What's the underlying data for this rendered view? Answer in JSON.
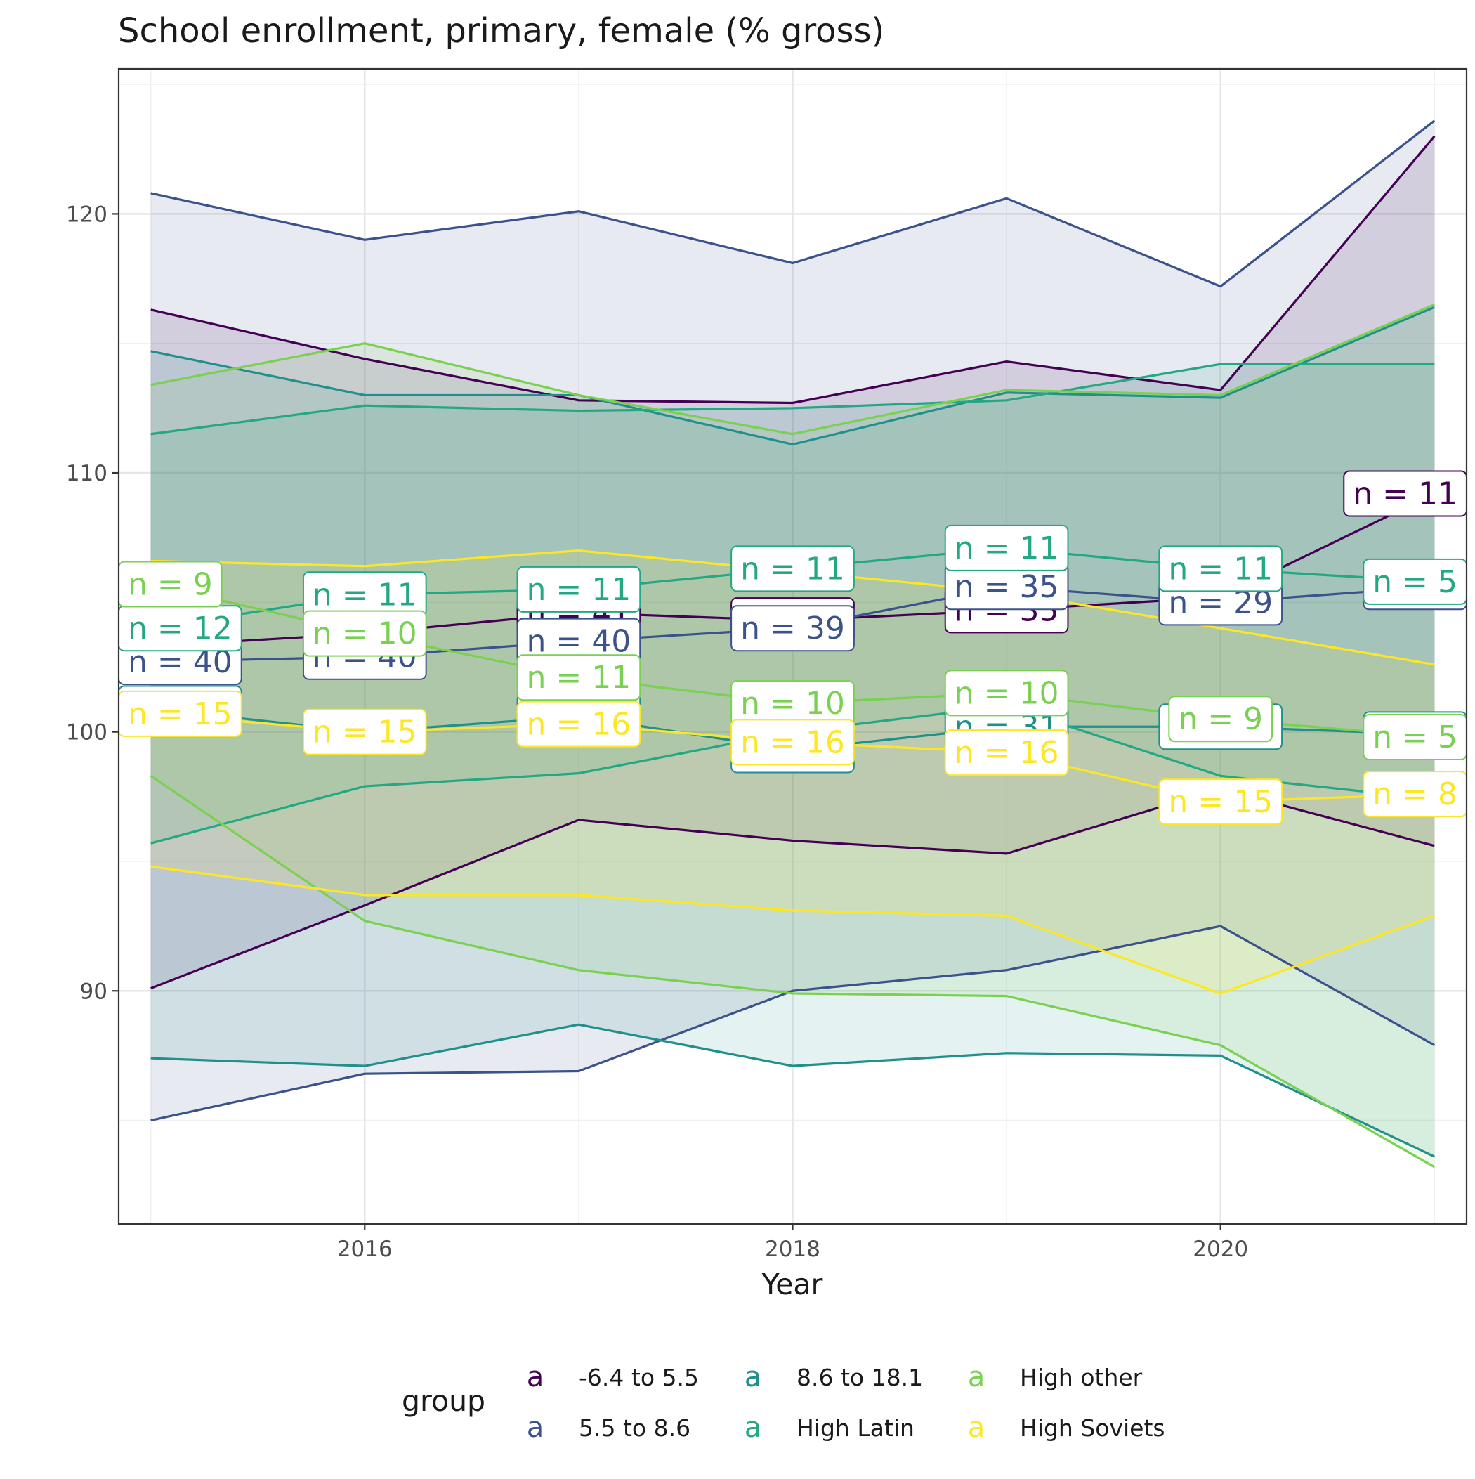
{
  "chart_data": {
    "type": "line",
    "title": "School enrollment, primary, female (% gross)",
    "xlabel": "Year",
    "ylabel": "",
    "xlim": [
      2014.85,
      2021.15
    ],
    "ylim": [
      81.0,
      125.6
    ],
    "x_ticks": [
      2016,
      2018,
      2020
    ],
    "y_ticks": [
      90,
      100,
      110,
      120
    ],
    "grid": true,
    "legend": {
      "title": "group",
      "position": "bottom",
      "key_glyph": "a",
      "entries": [
        "-6.4 to 5.5",
        "5.5 to 8.6",
        "8.6 to 18.1",
        "High Latin",
        "High other",
        "High Soviets"
      ]
    },
    "x": [
      2015,
      2016,
      2017,
      2018,
      2019,
      2020,
      2021
    ],
    "series": [
      {
        "name": "-6.4 to 5.5",
        "color": "#440154",
        "upper": [
          116.3,
          114.4,
          112.8,
          112.7,
          114.3,
          113.2,
          123.0
        ],
        "mean": [
          103.3,
          103.8,
          104.6,
          104.3,
          104.7,
          105.2,
          109.2
        ],
        "lower": [
          90.1,
          93.3,
          96.6,
          95.8,
          95.3,
          97.8,
          95.6
        ],
        "n_labels": [
          {
            "x": 2021,
            "y": 109.2,
            "text": "n = 11"
          },
          {
            "x": 2019,
            "y": 104.7,
            "text": "n = 35"
          },
          {
            "x": 2017,
            "y": 104.6,
            "text": "n = 41"
          },
          {
            "x": 2018,
            "y": 104.3,
            "text": "n = 39"
          }
        ]
      },
      {
        "name": "5.5 to 8.6",
        "color": "#3b528b",
        "upper": [
          120.8,
          119.0,
          120.1,
          118.1,
          120.6,
          117.2,
          123.6
        ],
        "mean": [
          102.7,
          102.9,
          103.5,
          104.0,
          105.6,
          105.0,
          105.6
        ],
        "lower": [
          85.0,
          86.8,
          86.9,
          90.0,
          90.8,
          92.5,
          87.9
        ],
        "n_labels": [
          {
            "x": 2015,
            "y": 102.7,
            "text": "n = 40"
          },
          {
            "x": 2016,
            "y": 102.9,
            "text": "n = 40"
          },
          {
            "x": 2017,
            "y": 103.5,
            "text": "n = 40"
          },
          {
            "x": 2018,
            "y": 104.0,
            "text": "n = 39"
          },
          {
            "x": 2019,
            "y": 105.6,
            "text": "n = 35"
          },
          {
            "x": 2020,
            "y": 105.0,
            "text": "n = 29"
          },
          {
            "x": 2021,
            "y": 105.6,
            "text": "n = 5"
          }
        ]
      },
      {
        "name": "8.6 to 18.1",
        "color": "#21908c",
        "upper": [
          114.7,
          113.0,
          113.0,
          111.1,
          113.1,
          112.9,
          116.4
        ],
        "mean": [
          100.9,
          100.0,
          100.6,
          99.3,
          100.2,
          100.2,
          99.9
        ],
        "lower": [
          87.4,
          87.1,
          88.7,
          87.1,
          87.6,
          87.5,
          83.6
        ],
        "n_labels": [
          {
            "x": 2015,
            "y": 100.9,
            "text": "n = 40"
          },
          {
            "x": 2016,
            "y": 100.0,
            "text": "n = 40"
          },
          {
            "x": 2017,
            "y": 100.6,
            "text": "n = 40"
          },
          {
            "x": 2018,
            "y": 99.3,
            "text": "n = 39"
          },
          {
            "x": 2019,
            "y": 100.2,
            "text": "n = 31"
          },
          {
            "x": 2020,
            "y": 100.2,
            "text": "n = 28"
          },
          {
            "x": 2021,
            "y": 99.9,
            "text": "n = 5"
          }
        ]
      },
      {
        "name": "High Latin",
        "color": "#23a883",
        "upper": [
          111.5,
          112.6,
          112.4,
          112.5,
          112.8,
          114.2,
          114.2
        ],
        "mean": [
          104.0,
          105.3,
          105.5,
          106.3,
          107.1,
          106.3,
          105.8
        ],
        "lower": [
          95.7,
          97.9,
          98.4,
          100.0,
          101.0,
          98.3,
          97.4
        ],
        "n_labels": [
          {
            "x": 2015,
            "y": 104.0,
            "text": "n = 12"
          },
          {
            "x": 2016,
            "y": 105.3,
            "text": "n = 11"
          },
          {
            "x": 2017,
            "y": 105.5,
            "text": "n = 11"
          },
          {
            "x": 2018,
            "y": 106.3,
            "text": "n = 11"
          },
          {
            "x": 2019,
            "y": 107.1,
            "text": "n = 11"
          },
          {
            "x": 2020,
            "y": 106.3,
            "text": "n = 11"
          },
          {
            "x": 2021,
            "y": 105.8,
            "text": "n = 5"
          }
        ]
      },
      {
        "name": "High other",
        "color": "#7ad151",
        "upper": [
          113.4,
          115.0,
          113.0,
          111.5,
          113.2,
          113.0,
          116.5
        ],
        "mean": [
          105.7,
          103.8,
          102.1,
          101.1,
          101.5,
          100.5,
          99.8
        ],
        "lower": [
          98.3,
          92.7,
          90.8,
          89.9,
          89.8,
          87.9,
          83.2
        ],
        "n_labels": [
          {
            "x": 2015,
            "y": 105.7,
            "text": "n = 9"
          },
          {
            "x": 2016,
            "y": 103.8,
            "text": "n = 10"
          },
          {
            "x": 2017,
            "y": 102.1,
            "text": "n = 11"
          },
          {
            "x": 2018,
            "y": 101.1,
            "text": "n = 10"
          },
          {
            "x": 2019,
            "y": 101.5,
            "text": "n = 10"
          },
          {
            "x": 2020,
            "y": 100.5,
            "text": "n = 9"
          },
          {
            "x": 2021,
            "y": 99.8,
            "text": "n = 5"
          }
        ]
      },
      {
        "name": "High Soviets",
        "color": "#fde725",
        "upper": [
          106.6,
          106.4,
          107.0,
          106.2,
          105.4,
          104.0,
          102.6
        ],
        "mean": [
          100.7,
          100.0,
          100.3,
          99.6,
          99.2,
          97.3,
          97.6
        ],
        "lower": [
          94.8,
          93.7,
          93.7,
          93.1,
          92.9,
          89.9,
          92.9
        ],
        "n_labels": [
          {
            "x": 2015,
            "y": 100.7,
            "text": "n = 15"
          },
          {
            "x": 2016,
            "y": 100.0,
            "text": "n = 15"
          },
          {
            "x": 2017,
            "y": 100.3,
            "text": "n = 16"
          },
          {
            "x": 2018,
            "y": 99.6,
            "text": "n = 16"
          },
          {
            "x": 2019,
            "y": 99.2,
            "text": "n = 16"
          },
          {
            "x": 2020,
            "y": 97.3,
            "text": "n = 15"
          },
          {
            "x": 2021,
            "y": 97.6,
            "text": "n = 8"
          }
        ]
      }
    ]
  }
}
